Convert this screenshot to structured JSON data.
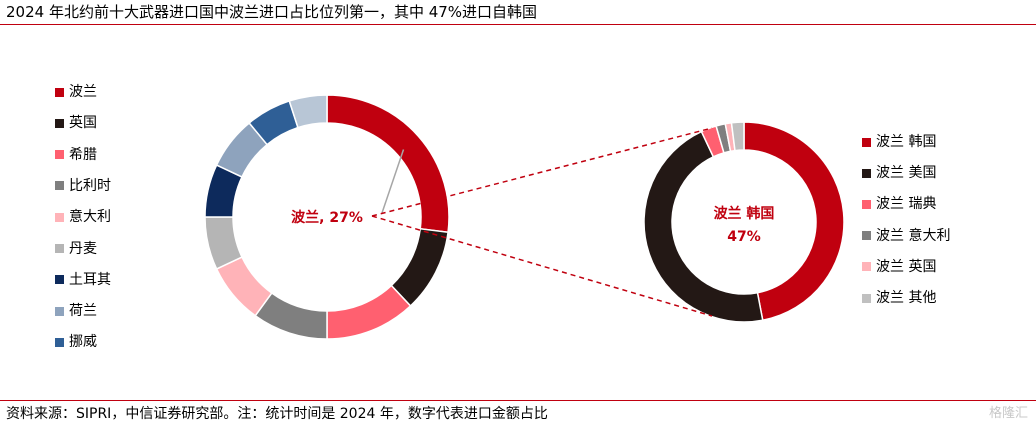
{
  "title": "2024 年北约前十大武器进口国中波兰进口占比位列第一，其中 47%进口自韩国",
  "footer": "资料来源：SIPRI，中信证券研究部。注：统计时间是 2024 年，数字代表进口金额占比",
  "watermark": "格隆汇",
  "chart_data": [
    {
      "type": "pie",
      "style": "donut",
      "center_label": "波兰, 27%",
      "legend_position": "left",
      "series": [
        {
          "name": "波兰",
          "value": 27,
          "color": "#c0000f"
        },
        {
          "name": "英国",
          "value": 11,
          "color": "#231815"
        },
        {
          "name": "希腊",
          "value": 12,
          "color": "#ff6070"
        },
        {
          "name": "比利时",
          "value": 10,
          "color": "#7f7f7f"
        },
        {
          "name": "意大利",
          "value": 8,
          "color": "#ffb3b8"
        },
        {
          "name": "丹麦",
          "value": 7,
          "color": "#b5b5b5"
        },
        {
          "name": "土耳其",
          "value": 7,
          "color": "#0d2a5c"
        },
        {
          "name": "荷兰",
          "value": 7,
          "color": "#8ea3bd"
        },
        {
          "name": "挪威",
          "value": 6,
          "color": "#2f5f96"
        },
        {
          "name": "",
          "value": 5,
          "color": "#b8c6d6"
        }
      ]
    },
    {
      "type": "pie",
      "style": "donut",
      "center_label_line1": "波兰 韩国",
      "center_label_line2": "47%",
      "legend_position": "right",
      "series": [
        {
          "name": "波兰 韩国",
          "value": 47,
          "color": "#c0000f"
        },
        {
          "name": "波兰 美国",
          "value": 46,
          "color": "#231815"
        },
        {
          "name": "波兰 瑞典",
          "value": 2.5,
          "color": "#ff6070"
        },
        {
          "name": "波兰 意大利",
          "value": 1.5,
          "color": "#7f7f7f"
        },
        {
          "name": "波兰 英国",
          "value": 1,
          "color": "#ffb3b8"
        },
        {
          "name": "波兰 其他",
          "value": 2,
          "color": "#c0c0c0"
        }
      ]
    }
  ]
}
